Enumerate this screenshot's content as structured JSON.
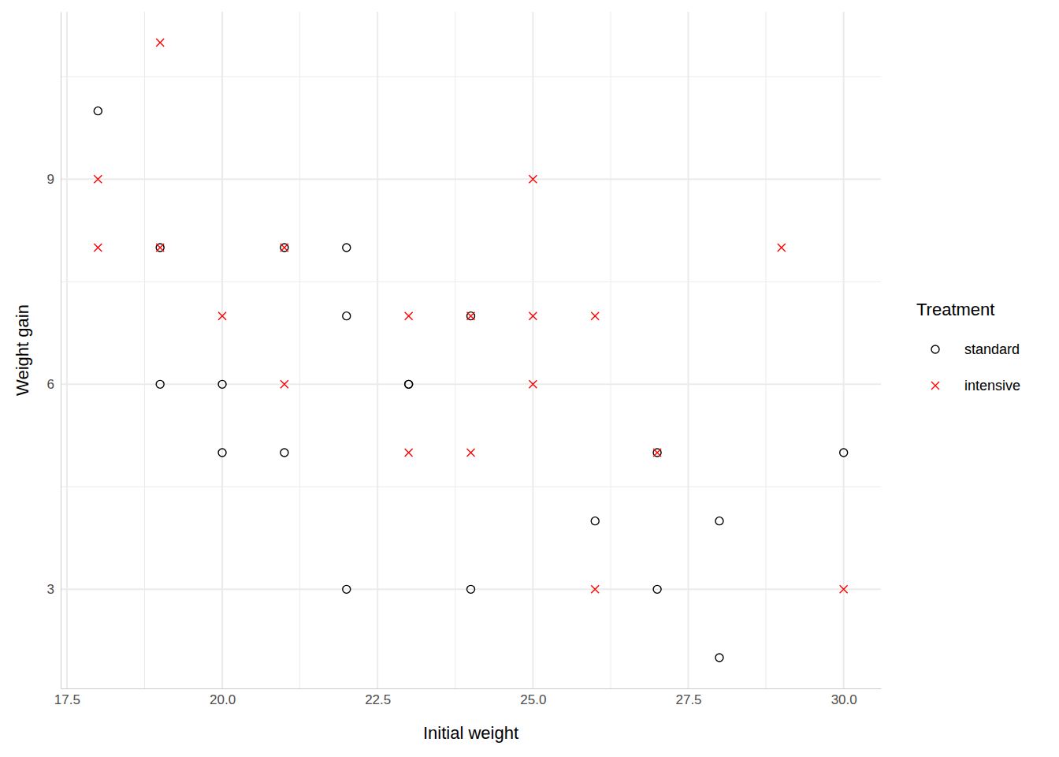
{
  "chart_data": {
    "type": "scatter",
    "x_label": "Initial weight",
    "y_label": "Weight gain",
    "legend_title": "Treatment",
    "legend": "right",
    "grid": true,
    "xlim": [
      17.4,
      30.6
    ],
    "ylim": [
      1.55,
      11.45
    ],
    "xticks": [
      {
        "value": 17.5,
        "label": "17.5"
      },
      {
        "value": 20,
        "label": "20.0"
      },
      {
        "value": 22.5,
        "label": "22.5"
      },
      {
        "value": 25,
        "label": "25.0"
      },
      {
        "value": 27.5,
        "label": "27.5"
      },
      {
        "value": 30,
        "label": "30.0"
      }
    ],
    "yticks": [
      3,
      6,
      9
    ],
    "series": [
      {
        "name": "standard",
        "color": "#000000",
        "marker": "circle",
        "x": [
          18,
          19,
          19,
          20,
          20,
          21,
          21,
          22,
          22,
          22,
          23,
          23,
          24,
          24,
          26,
          27,
          27,
          28,
          28,
          30
        ],
        "values": [
          10,
          8,
          6,
          6,
          5,
          8,
          5,
          8,
          7,
          3,
          6,
          6,
          7,
          3,
          4,
          5,
          3,
          4,
          2,
          5
        ]
      },
      {
        "name": "intensive",
        "color": "#ff0000",
        "marker": "cross",
        "x": [
          18,
          18,
          19,
          19,
          20,
          21,
          21,
          23,
          23,
          24,
          24,
          25,
          25,
          25,
          26,
          26,
          27,
          29,
          30
        ],
        "values": [
          9,
          8,
          11,
          8,
          7,
          8,
          6,
          7,
          5,
          7,
          5,
          9,
          7,
          6,
          7,
          3,
          5,
          8,
          3
        ]
      }
    ]
  }
}
